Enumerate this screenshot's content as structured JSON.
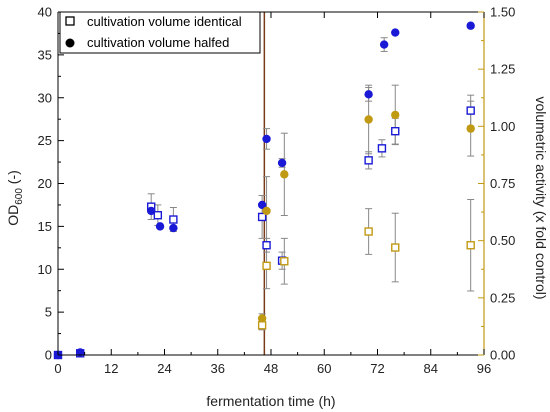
{
  "chart_data": {
    "type": "scatter",
    "xlabel": "fermentation time (h)",
    "ylabel_left": "OD",
    "ylabel_left_sub": "600",
    "ylabel_left_suffix": " (-)",
    "ylabel_right": "volumetric activity (x fold control)",
    "xlim": [
      0,
      96
    ],
    "ylim_left": [
      0,
      40
    ],
    "ylim_right": [
      0,
      1.5
    ],
    "x_ticks": [
      0,
      12,
      24,
      36,
      48,
      60,
      72,
      84,
      96
    ],
    "y_left_ticks": [
      0,
      5,
      10,
      15,
      20,
      25,
      30,
      35,
      40
    ],
    "y_right_ticks": [
      0,
      0.25,
      0.5,
      0.75,
      1.0,
      1.25,
      1.5
    ],
    "y_right_tick_labels": [
      "0.00",
      "0.25",
      "0.50",
      "0.75",
      "1.00",
      "1.25",
      "1.50"
    ],
    "grid": false,
    "legend_position": "top-left",
    "vertical_line_x": 46.5,
    "colors": {
      "od": "#1a1ad6",
      "activity": "#c19a13",
      "vline": "#7a3a1a",
      "errorbar": "#888888",
      "axis": "#000000"
    },
    "series": [
      {
        "name": "cultivation volume identical",
        "axis": "left",
        "marker": "open-square",
        "color_key": "od",
        "x": [
          0,
          5,
          21,
          22.5,
          26,
          46,
          47,
          50.5,
          70,
          73,
          76,
          93
        ],
        "y": [
          0,
          0.2,
          17.3,
          16.3,
          15.8,
          16.1,
          12.8,
          11,
          22.7,
          24.1,
          26.1,
          28.5
        ],
        "err": [
          0,
          0,
          1.5,
          1.2,
          1.4,
          2.5,
          0.8,
          1.0,
          1.0,
          1.0,
          1.5,
          1.8
        ]
      },
      {
        "name": "cultivation volume halfed",
        "axis": "left",
        "marker": "filled-circle",
        "color_key": "od",
        "x": [
          0,
          5,
          21,
          23,
          26,
          46,
          47,
          50.5,
          70,
          73.5,
          76,
          93
        ],
        "y": [
          0,
          0.3,
          16.8,
          15,
          14.8,
          17.5,
          25.2,
          22.4,
          30.4,
          36.2,
          37.6,
          38.4
        ],
        "err": [
          0,
          0,
          0,
          0,
          0,
          0,
          1.2,
          0.5,
          0.8,
          0.8,
          0,
          0
        ]
      },
      {
        "axis": "right",
        "marker": "open-square",
        "color_key": "activity",
        "x": [
          46,
          47,
          51,
          70,
          76,
          93
        ],
        "y": [
          0.13,
          0.39,
          0.41,
          0.54,
          0.47,
          0.48
        ],
        "err": [
          0.02,
          0.1,
          0.1,
          0.1,
          0.15,
          0.2
        ]
      },
      {
        "axis": "right",
        "marker": "filled-circle",
        "color_key": "activity",
        "x": [
          46,
          47,
          51,
          70,
          76,
          93
        ],
        "y": [
          0.16,
          0.63,
          0.79,
          1.03,
          1.05,
          0.99
        ],
        "err": [
          0.02,
          0.15,
          0.18,
          0.15,
          0.13,
          0.12
        ]
      }
    ]
  }
}
